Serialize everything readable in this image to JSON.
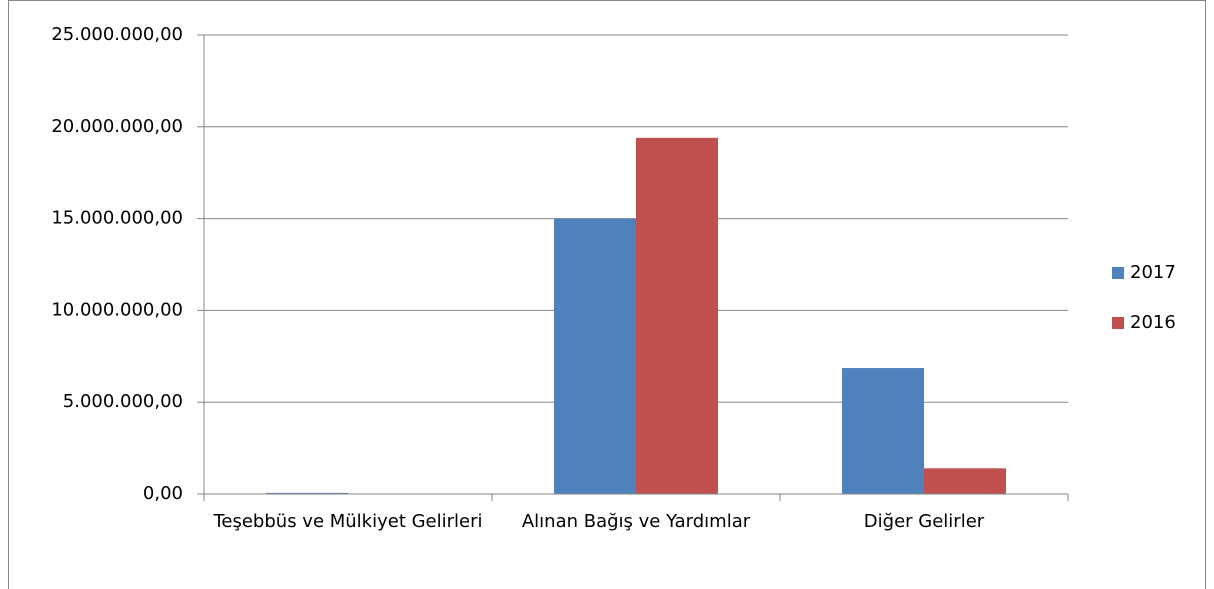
{
  "chart_data": {
    "type": "bar",
    "categories": [
      "Teşebbüs ve Mülkiyet Gelirleri",
      "Alınan Bağış ve Yardımlar",
      "Diğer Gelirler"
    ],
    "series": [
      {
        "name": "2017",
        "color": "#4f81bd",
        "values": [
          60000,
          15000000,
          6860000
        ]
      },
      {
        "name": "2016",
        "color": "#c0504d",
        "values": [
          20000,
          19400000,
          1400000
        ]
      }
    ],
    "ylim": [
      0,
      25000000
    ],
    "yticks": [
      {
        "value": 0,
        "label": "0,00"
      },
      {
        "value": 5000000,
        "label": "5.000.000,00"
      },
      {
        "value": 10000000,
        "label": "10.000.000,00"
      },
      {
        "value": 15000000,
        "label": "15.000.000,00"
      },
      {
        "value": 20000000,
        "label": "20.000.000,00"
      },
      {
        "value": 25000000,
        "label": "25.000.000,00"
      }
    ],
    "grid": true,
    "legend": "right"
  }
}
